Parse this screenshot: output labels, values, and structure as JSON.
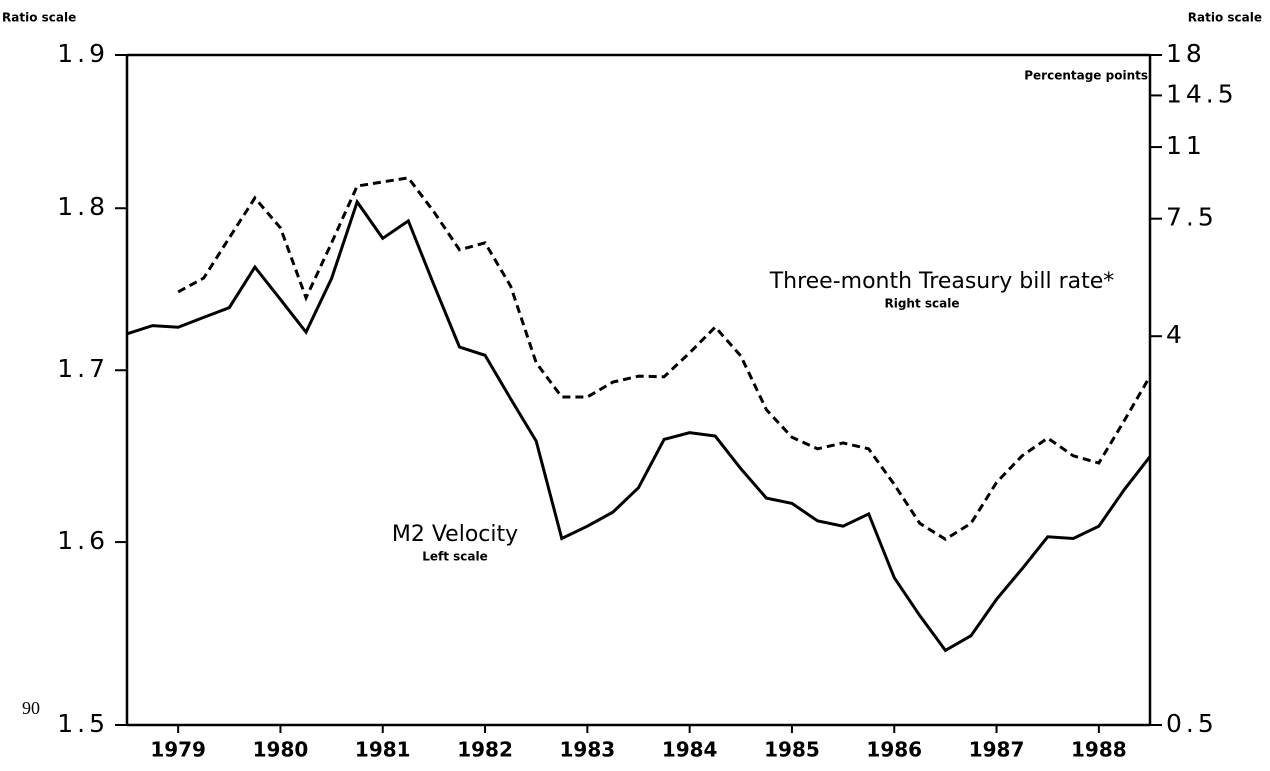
{
  "chart_data": {
    "type": "line",
    "y_axis_label": "Ratio scale",
    "y2_axis_label": "Ratio scale",
    "y2_axis_sublabel": "Percentage points",
    "annotations": [
      {
        "text": "90"
      }
    ],
    "log_scale_y": true,
    "log_scale_y2": true,
    "xlim": [
      1978.75,
      1988.75
    ],
    "xticks": [
      {
        "value": 1979.25,
        "label": "1979"
      },
      {
        "value": 1980.25,
        "label": "1980"
      },
      {
        "value": 1981.25,
        "label": "1981"
      },
      {
        "value": 1982.25,
        "label": "1982"
      },
      {
        "value": 1983.25,
        "label": "1983"
      },
      {
        "value": 1984.25,
        "label": "1984"
      },
      {
        "value": 1985.25,
        "label": "1985"
      },
      {
        "value": 1986.25,
        "label": "1986"
      },
      {
        "value": 1987.25,
        "label": "1987"
      },
      {
        "value": 1988.25,
        "label": "1988"
      }
    ],
    "ylim": [
      1.5,
      1.9
    ],
    "yticks": [
      1.5,
      1.6,
      1.7,
      1.8,
      1.9
    ],
    "y2lim": [
      0.5,
      18
    ],
    "y2ticks": [
      0.5,
      4,
      7.5,
      11,
      14.5,
      18
    ],
    "x": [
      1978.75,
      1979,
      1979.25,
      1979.5,
      1979.75,
      1980,
      1980.25,
      1980.5,
      1980.75,
      1981,
      1981.25,
      1981.5,
      1981.75,
      1982,
      1982.25,
      1982.5,
      1982.75,
      1983,
      1983.25,
      1983.5,
      1983.75,
      1984,
      1984.25,
      1984.5,
      1984.75,
      1985,
      1985.25,
      1985.5,
      1985.75,
      1986,
      1986.25,
      1986.5,
      1986.75,
      1987,
      1987.25,
      1987.5,
      1987.75,
      1988,
      1988.25,
      1988.5,
      1988.75
    ],
    "series": [
      {
        "name": "M2 Velocity",
        "sublabel": "Left scale",
        "color": "#000000",
        "dash": "solid",
        "values": [
          1.722,
          1.727,
          1.726,
          1.732,
          1.738,
          1.763,
          1.743,
          1.723,
          1.756,
          1.804,
          1.781,
          1.792,
          1.752,
          1.714,
          1.709,
          1.683,
          1.658,
          1.602,
          1.609,
          1.617,
          1.631,
          1.659,
          1.663,
          1.661,
          1.642,
          1.625,
          1.622,
          1.612,
          1.609,
          1.616,
          1.58,
          1.559,
          1.54,
          1.548,
          1.568,
          1.585,
          1.603,
          1.602,
          1.609,
          1.63,
          1.649
        ]
      },
      {
        "name": "Three-month Treasury bill rate*",
        "sublabel": "Right scale",
        "color": "#000000",
        "dash": "dashed",
        "axis": "y2",
        "values": [
          null,
          null,
          5.07,
          5.46,
          6.77,
          8.38,
          7.14,
          4.91,
          6.59,
          8.93,
          9.13,
          9.33,
          7.78,
          6.35,
          6.59,
          5.23,
          3.47,
          2.89,
          2.89,
          3.13,
          3.23,
          3.22,
          3.66,
          4.2,
          3.6,
          2.7,
          2.33,
          2.19,
          2.26,
          2.19,
          1.81,
          1.47,
          1.35,
          1.47,
          1.83,
          2.11,
          2.32,
          2.11,
          2.03,
          2.55,
          3.23
        ]
      }
    ]
  }
}
